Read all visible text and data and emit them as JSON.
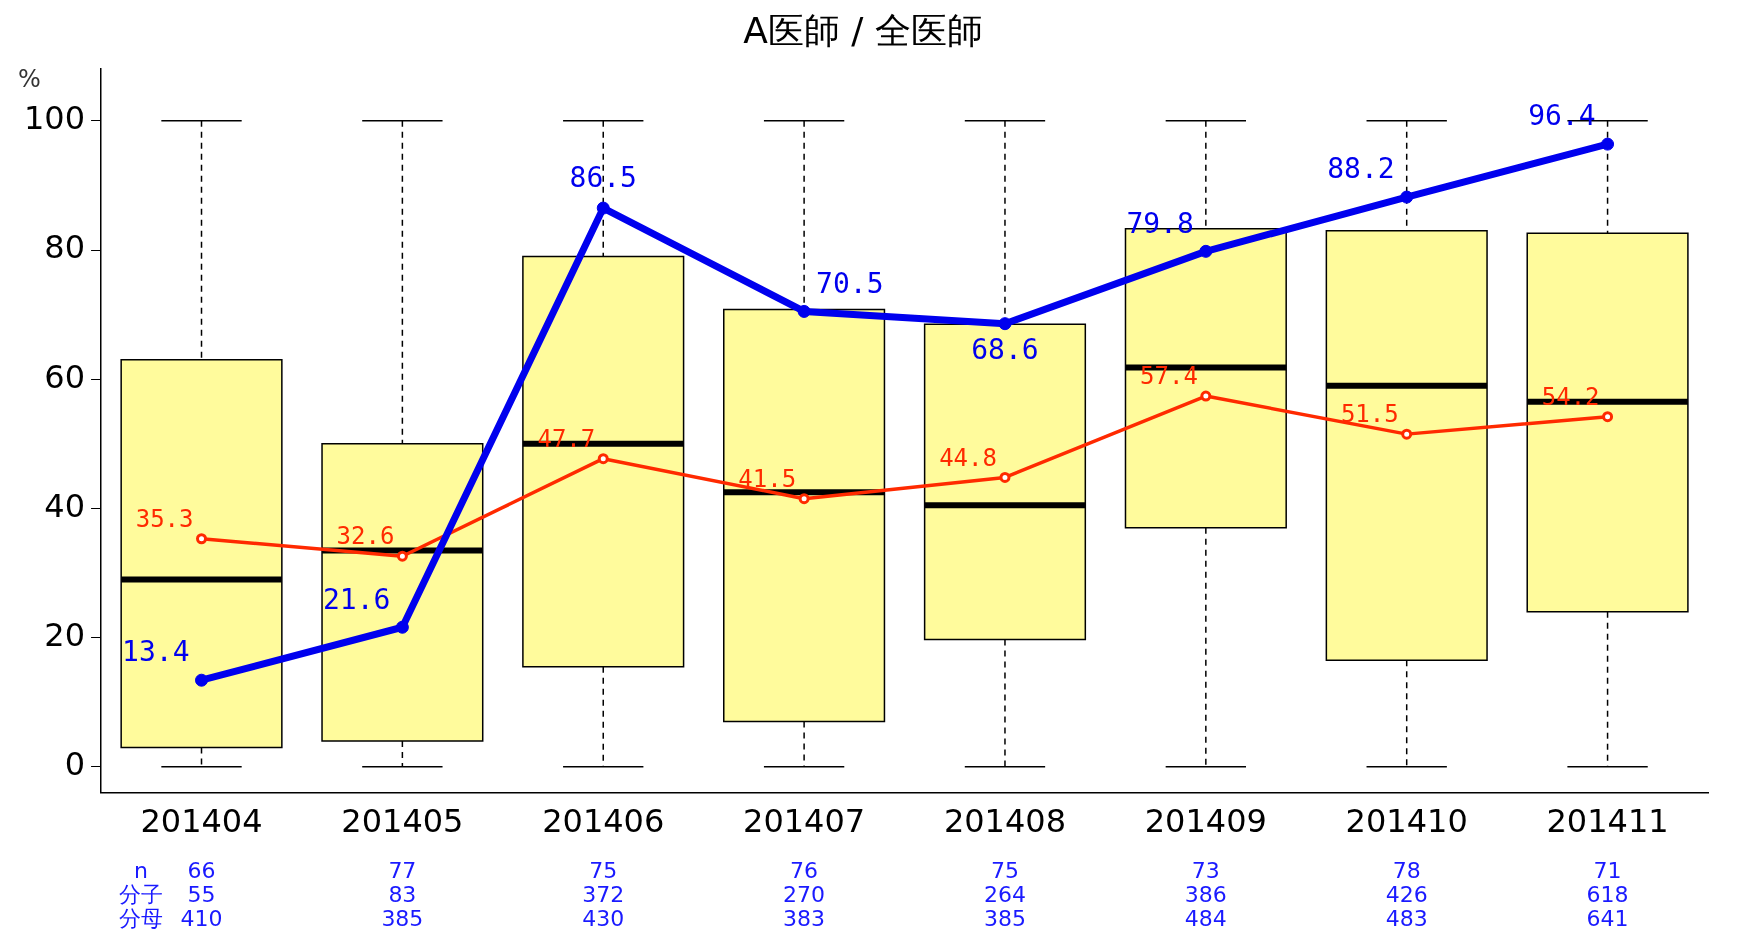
{
  "chart_data": {
    "type": "box",
    "title": "A医師 / 全医師",
    "ylabel": "%",
    "categories": [
      "201404",
      "201405",
      "201406",
      "201407",
      "201408",
      "201409",
      "201410",
      "201411"
    ],
    "series": [
      {
        "color": "#fffb9c",
        "boxes": [
          {
            "low": 0,
            "q1": 3,
            "median": 29,
            "q3": 63,
            "high": 100
          },
          {
            "low": 0,
            "q1": 4,
            "median": 33.5,
            "q3": 50,
            "high": 100
          },
          {
            "low": 0,
            "q1": 15.5,
            "median": 50,
            "q3": 79,
            "high": 100
          },
          {
            "low": 0,
            "q1": 7,
            "median": 42.5,
            "q3": 70.8,
            "high": 100
          },
          {
            "low": 0,
            "q1": 19.7,
            "median": 40.5,
            "q3": 68.5,
            "high": 100
          },
          {
            "low": 0,
            "q1": 37,
            "median": 61.8,
            "q3": 83.3,
            "high": 100
          },
          {
            "low": 0,
            "q1": 16.5,
            "median": 59,
            "q3": 83,
            "high": 100
          },
          {
            "low": 0,
            "q1": 24,
            "median": 56.5,
            "q3": 82.6,
            "high": 100
          }
        ]
      },
      {
        "type": "line",
        "color": "#0000ee",
        "values": [
          13.4,
          21.6,
          86.5,
          70.5,
          68.6,
          79.8,
          88.2,
          96.4
        ]
      },
      {
        "type": "line",
        "color": "#ff2a00",
        "values": [
          35.3,
          32.6,
          47.7,
          41.5,
          44.8,
          57.4,
          51.5,
          54.2
        ]
      }
    ],
    "data_labels": true,
    "marker": "circle",
    "line_style": "solid",
    "grid": false,
    "legend": false,
    "ylim": [
      -4,
      108
    ],
    "yticks": [
      0,
      20,
      40,
      60,
      80,
      100
    ],
    "annotations": [
      "n",
      "66",
      "77",
      "75",
      "76",
      "75",
      "73",
      "78",
      "71",
      "分子",
      "55",
      "83",
      "372",
      "270",
      "264",
      "386",
      "426",
      "618",
      "分母",
      "410",
      "385",
      "430",
      "383",
      "385",
      "484",
      "483",
      "641"
    ]
  }
}
